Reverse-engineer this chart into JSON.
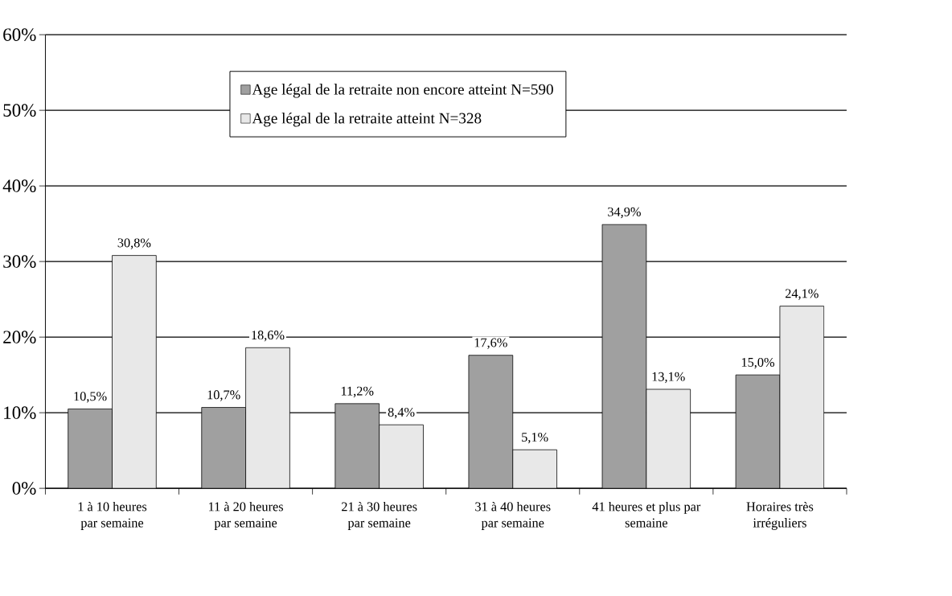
{
  "chart_data": {
    "type": "bar",
    "categories": [
      "1 à 10 heures par semaine",
      "11 à 20 heures par semaine",
      "21 à 30 heures par semaine",
      "31 à 40 heures par semaine",
      "41 heures et plus par semaine",
      "Horaires très irréguliers"
    ],
    "series": [
      {
        "name": "Age légal de la retraite non encore atteint    N=590",
        "color": "#a0a0a0",
        "values": [
          10.5,
          10.7,
          11.2,
          17.6,
          34.9,
          15.0
        ],
        "value_labels": [
          "10,5%",
          "10,7%",
          "11,2%",
          "17,6%",
          "34,9%",
          "15,0%"
        ]
      },
      {
        "name": "Age légal de la retraite atteint    N=328",
        "color": "#e8e8e8",
        "values": [
          30.8,
          18.6,
          8.4,
          5.1,
          13.1,
          24.1
        ],
        "value_labels": [
          "30,8%",
          "18,6%",
          "8,4%",
          "5,1%",
          "13,1%",
          "24,1%"
        ]
      }
    ],
    "ylim": [
      0,
      60
    ],
    "yticks": [
      {
        "value": 0,
        "label": "0%"
      },
      {
        "value": 10,
        "label": "10%"
      },
      {
        "value": 20,
        "label": "20%"
      },
      {
        "value": 30,
        "label": "30%"
      },
      {
        "value": 40,
        "label": "40%"
      },
      {
        "value": 50,
        "label": "50%"
      },
      {
        "value": 60,
        "label": "60%"
      }
    ],
    "grid": "y",
    "legend": "top"
  }
}
